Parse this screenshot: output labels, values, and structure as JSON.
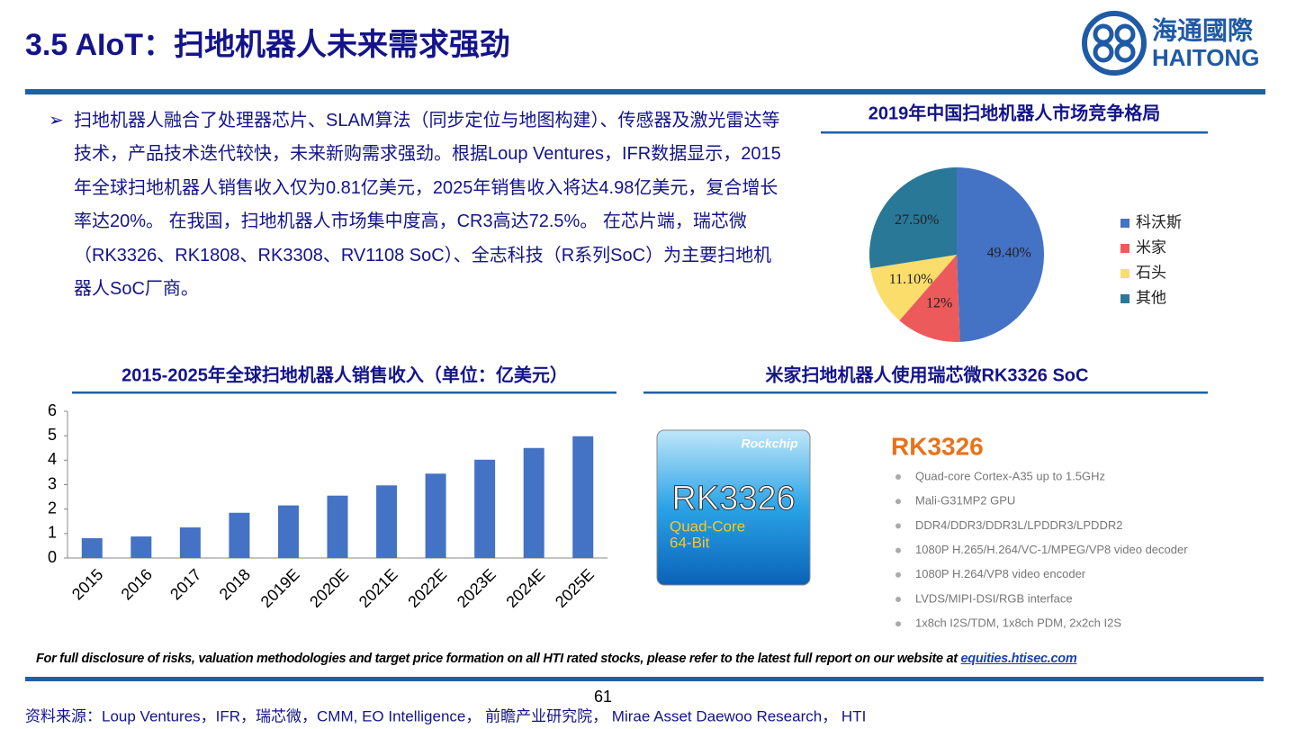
{
  "header": {
    "title": "3.5 AIoT：扫地机器人未来需求强劲",
    "logo_cn": "海通國際",
    "logo_en": "HAITONG"
  },
  "body": {
    "paragraph": "扫地机器人融合了处理器芯片、SLAM算法（同步定位与地图构建）、传感器及激光雷达等技术，产品技术迭代较快，未来新购需求强劲。根据Loup Ventures，IFR数据显示，2015年全球扫地机器人销售收入仅为0.81亿美元，2025年销售收入将达4.98亿美元，复合增长率达20%。 在我国，扫地机器人市场集中度高，CR3高达72.5%。 在芯片端，瑞芯微（RK3326、RK1808、RK3308、RV1108 SoC）、全志科技（R系列SoC）为主要扫地机器人SoC厂商。"
  },
  "chart_data": [
    {
      "type": "pie",
      "title": "2019年中国扫地机器人市场竞争格局",
      "categories": [
        "科沃斯",
        "米家",
        "石头",
        "其他"
      ],
      "values": [
        49.4,
        12,
        11.1,
        27.5
      ],
      "value_labels": [
        "49.40%",
        "12%",
        "11.10%",
        "27.50%"
      ],
      "colors": [
        "#4472c4",
        "#ec5a5c",
        "#fadd6b",
        "#2a7897"
      ],
      "legend": "right"
    },
    {
      "type": "bar",
      "title": "2015-2025年全球扫地机器人销售收入（单位：亿美元）",
      "categories": [
        "2015",
        "2016",
        "2017",
        "2018",
        "2019E",
        "2020E",
        "2021E",
        "2022E",
        "2023E",
        "2024E",
        "2025E"
      ],
      "values": [
        0.81,
        0.88,
        1.25,
        1.85,
        2.15,
        2.55,
        2.97,
        3.45,
        4.02,
        4.5,
        4.98
      ],
      "color": "#4472c4",
      "ylim": [
        0,
        6
      ],
      "yticks": [
        0,
        1,
        2,
        3,
        4,
        5,
        6
      ]
    }
  ],
  "chip_panel": {
    "title": "米家扫地机器人使用瑞芯微RK3326 SoC",
    "chip_brand": "Rockchip",
    "chip_name": "RK3326",
    "chip_line1": "Quad-Core",
    "chip_line2": "64-Bit",
    "heading": "RK3326",
    "specs": [
      "Quad-core Cortex-A35 up to 1.5GHz",
      "Mali-G31MP2 GPU",
      "DDR4/DDR3/DDR3L/LPDDR3/LPDDR2",
      "1080P H.265/H.264/VC-1/MPEG/VP8 video decoder",
      "1080P H.264/VP8 video encoder",
      "LVDS/MIPI-DSI/RGB interface",
      "1x8ch I2S/TDM, 1x8ch PDM, 2x2ch I2S"
    ]
  },
  "footer": {
    "disclaimer": "For full disclosure of risks, valuation methodologies and target price formation on all HTI rated stocks, please refer to the latest full report on our website at",
    "link": "equities.htisec.com",
    "page": "61",
    "source": "资料来源：Loup Ventures，IFR，瑞芯微，CMM, EO Intelligence， 前瞻产业研究院， Mirae Asset Daewoo Research， HTI"
  }
}
